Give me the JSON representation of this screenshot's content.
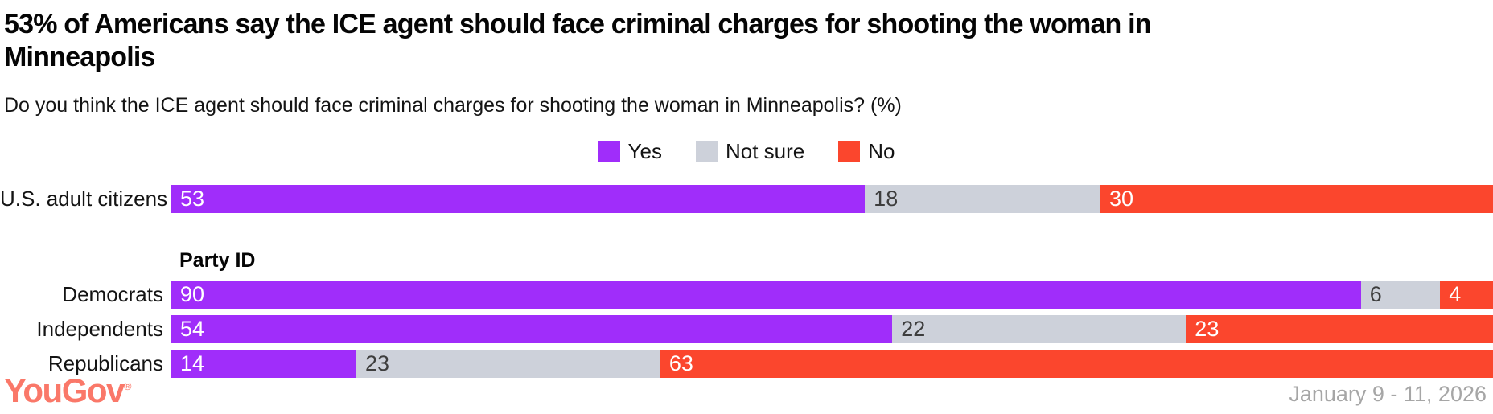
{
  "header": {
    "title": "53% of Americans say the ICE agent should face criminal charges for shooting the woman in Minneapolis",
    "subtitle": "Do you think the ICE agent should face criminal charges for shooting the woman in Minneapolis? (%)"
  },
  "legend": {
    "items": [
      {
        "label": "Yes",
        "color": "#A02DFA"
      },
      {
        "label": "Not sure",
        "color": "#CDD1DA"
      },
      {
        "label": "No",
        "color": "#FB462D"
      }
    ]
  },
  "chart_data": {
    "type": "bar",
    "orientation": "horizontal",
    "stacked": true,
    "normalized_to_full_width": true,
    "title": "53% of Americans say the ICE agent should face criminal charges for shooting the woman in Minneapolis",
    "question": "Do you think the ICE agent should face criminal charges for shooting the woman in Minneapolis? (%)",
    "series_names": [
      "Yes",
      "Not sure",
      "No"
    ],
    "colors": {
      "yes": "#A02DFA",
      "not_sure": "#CDD1DA",
      "no": "#FB462D"
    },
    "section_label": "Party ID",
    "rows": [
      {
        "label": "U.S. adult citizens",
        "yes": 53,
        "not_sure": 18,
        "no": 30
      },
      {
        "label": "Democrats",
        "yes": 90,
        "not_sure": 6,
        "no": 4
      },
      {
        "label": "Independents",
        "yes": 54,
        "not_sure": 22,
        "no": 23
      },
      {
        "label": "Republicans",
        "yes": 14,
        "not_sure": 23,
        "no": 63
      }
    ]
  },
  "footer": {
    "logo_text": "YouGov",
    "logo_mark": "®",
    "logo_color": "#FA7869",
    "date_range": "January 9 - 11, 2026"
  }
}
